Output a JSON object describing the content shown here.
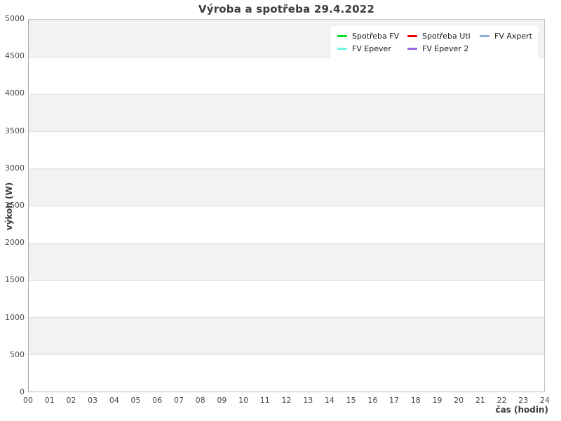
{
  "title": "Výroba a spotřeba 29.4.2022",
  "axes": {
    "y_label": "výkon (W)",
    "x_label": "čas (hodin)",
    "y_ticks": [
      "5000",
      "4500",
      "4000",
      "3500",
      "3000",
      "2500",
      "2000",
      "1500",
      "1000",
      "500",
      "0"
    ],
    "x_ticks": [
      "00",
      "01",
      "02",
      "03",
      "04",
      "05",
      "06",
      "07",
      "08",
      "09",
      "10",
      "11",
      "12",
      "13",
      "14",
      "15",
      "16",
      "17",
      "18",
      "19",
      "20",
      "21",
      "22",
      "23",
      "24"
    ]
  },
  "legend": {
    "items": [
      {
        "label": "Spotřeba FV",
        "color": "#00dd33"
      },
      {
        "label": "Spotřeba Uti",
        "color": "#e60000"
      },
      {
        "label": "FV Axpert",
        "color": "#8fabd8"
      },
      {
        "label": "FV Epever",
        "color": "#6cf5e0"
      },
      {
        "label": "FV Epever 2",
        "color": "#9768e0"
      }
    ]
  },
  "colors": {
    "band_gray": "#f2f2f2",
    "gridline": "#e0e0e0",
    "plot_border": "#c6c6c6",
    "title_text": "#3c3c3c",
    "tick_text": "#4a4a4a"
  },
  "chart_data": {
    "type": "line",
    "title": "Výroba a spotřeba 29.4.2022",
    "xlabel": "čas (hodin)",
    "ylabel": "výkon (W)",
    "xlim": [
      0,
      24
    ],
    "ylim": [
      0,
      5000
    ],
    "x_ticks": [
      0,
      1,
      2,
      3,
      4,
      5,
      6,
      7,
      8,
      9,
      10,
      11,
      12,
      13,
      14,
      15,
      16,
      17,
      18,
      19,
      20,
      21,
      22,
      23,
      24
    ],
    "y_ticks": [
      0,
      500,
      1000,
      1500,
      2000,
      2500,
      3000,
      3500,
      4000,
      4500,
      5000
    ],
    "grid": "horizontal gridlines every 500 W with alternating gray/white bands (gray topmost)",
    "legend_position": "top-right inside plot, 2 rows x 3 columns",
    "series": [
      {
        "name": "Spotřeba FV",
        "color": "#00dd33",
        "values": []
      },
      {
        "name": "Spotřeba Uti",
        "color": "#e60000",
        "values": []
      },
      {
        "name": "FV Axpert",
        "color": "#8fabd8",
        "values": []
      },
      {
        "name": "FV Epever",
        "color": "#6cf5e0",
        "values": []
      },
      {
        "name": "FV Epever 2",
        "color": "#9768e0",
        "values": []
      }
    ],
    "note": "No data lines are drawn in the plot area; chart is empty apart from axes, bands and legend."
  }
}
